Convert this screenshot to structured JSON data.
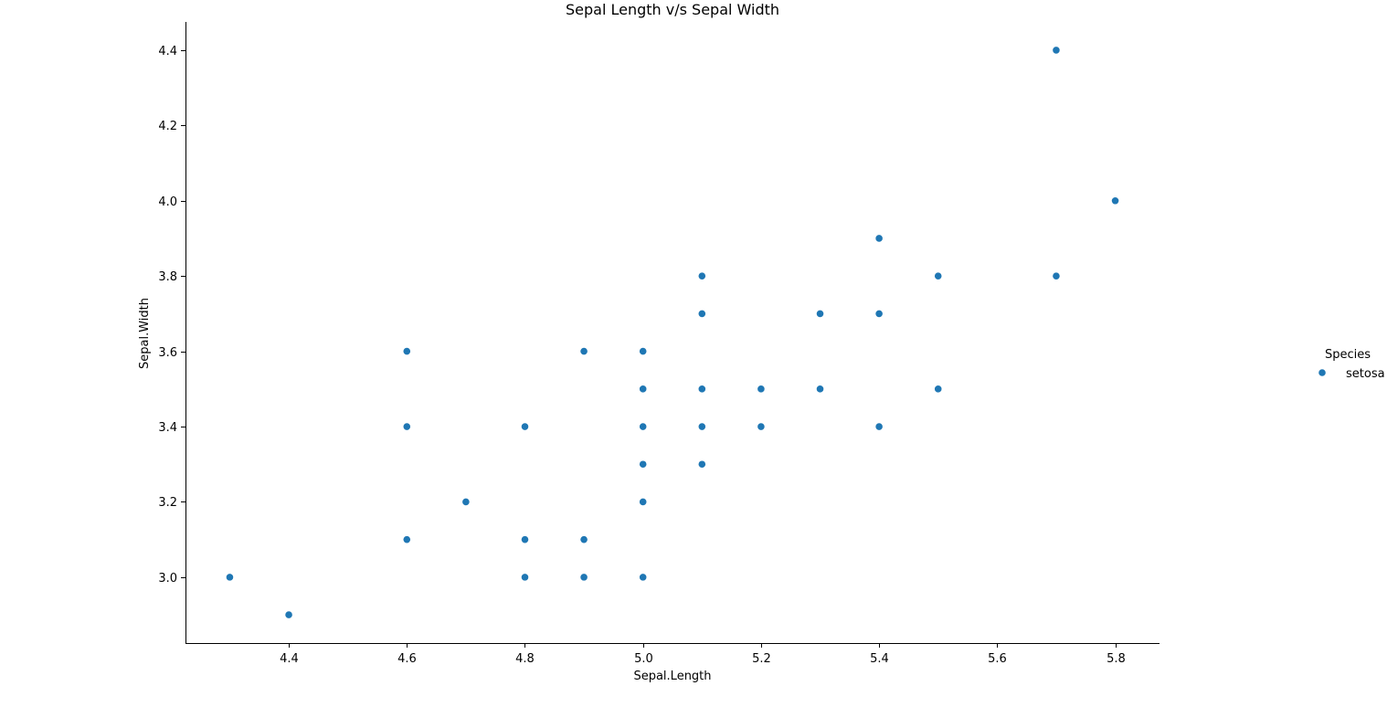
{
  "chart_data": {
    "type": "scatter",
    "title": "Sepal Length v/s Sepal Width",
    "xlabel": "Sepal.Length",
    "ylabel": "Sepal.Width",
    "xlim": [
      4.225,
      5.875
    ],
    "ylim": [
      2.825,
      4.475
    ],
    "x_ticks": [
      "4.4",
      "4.6",
      "4.8",
      "5.0",
      "5.2",
      "5.4",
      "5.6",
      "5.8"
    ],
    "y_ticks": [
      "3.0",
      "3.2",
      "3.4",
      "3.6",
      "3.8",
      "4.0",
      "4.2",
      "4.4"
    ],
    "grid": false,
    "legend": {
      "title": "Species",
      "placement": "right",
      "entries": [
        "setosa"
      ]
    },
    "series": [
      {
        "name": "setosa",
        "color": "#1f77b4",
        "points": [
          [
            5.7,
            4.4
          ],
          [
            5.8,
            4.0
          ],
          [
            5.4,
            3.9
          ],
          [
            5.1,
            3.8
          ],
          [
            5.5,
            3.8
          ],
          [
            5.7,
            3.8
          ],
          [
            5.1,
            3.7
          ],
          [
            5.3,
            3.7
          ],
          [
            5.4,
            3.7
          ],
          [
            4.6,
            3.6
          ],
          [
            4.9,
            3.6
          ],
          [
            5.0,
            3.6
          ],
          [
            5.0,
            3.5
          ],
          [
            5.1,
            3.5
          ],
          [
            5.2,
            3.5
          ],
          [
            5.3,
            3.5
          ],
          [
            5.5,
            3.5
          ],
          [
            4.6,
            3.4
          ],
          [
            4.8,
            3.4
          ],
          [
            5.0,
            3.4
          ],
          [
            5.1,
            3.4
          ],
          [
            5.2,
            3.4
          ],
          [
            5.4,
            3.4
          ],
          [
            5.0,
            3.3
          ],
          [
            5.1,
            3.3
          ],
          [
            4.7,
            3.2
          ],
          [
            5.0,
            3.2
          ],
          [
            4.6,
            3.1
          ],
          [
            4.8,
            3.1
          ],
          [
            4.9,
            3.1
          ],
          [
            4.3,
            3.0
          ],
          [
            4.8,
            3.0
          ],
          [
            4.9,
            3.0
          ],
          [
            5.0,
            3.0
          ],
          [
            4.4,
            2.9
          ]
        ]
      }
    ]
  }
}
